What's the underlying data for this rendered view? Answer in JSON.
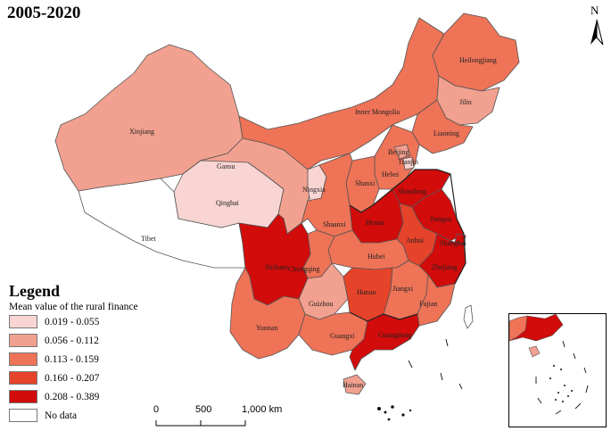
{
  "title": "2005-2020",
  "north_arrow": {
    "letter": "N",
    "icon": "north-arrow-icon"
  },
  "legend": {
    "heading": "Legend",
    "subtitle": "Mean value of the rural finance",
    "classes": [
      {
        "label": "0.019 - 0.055",
        "color": "#f8d5d3"
      },
      {
        "label": "0.056 - 0.112",
        "color": "#f2a08f"
      },
      {
        "label": "0.113 - 0.159",
        "color": "#ee7357"
      },
      {
        "label": "0.160 - 0.207",
        "color": "#e5432a"
      },
      {
        "label": "0.208 - 0.389",
        "color": "#d20b0b"
      },
      {
        "label": "No data",
        "color": "#ffffff"
      }
    ]
  },
  "scale_bar": {
    "labels": [
      "0",
      "500",
      "1,000 km"
    ]
  },
  "provinces": {
    "xinjiang": "Xinjiang",
    "tibet": "Tibet",
    "qinghai": "Qinghai",
    "gansu": "Gansu",
    "inner_mongolia": "Inner Mongolia",
    "heilongjiang": "Heilongjiang",
    "jilin": "Jilin",
    "liaoning": "Liaoning",
    "beijing": "Beijing",
    "tianjin": "Tianjin",
    "hebei": "Hebei",
    "shanxi": "Shanxi",
    "shandong": "Shandong",
    "ningxia": "Ningxia",
    "shaanxi": "Shaanxi",
    "henan": "Henan",
    "anhui": "Anhui",
    "jiangsu": "Jiangsu",
    "shanghai": "Shanghai",
    "zhejiang": "Zhejiang",
    "hubei": "Hubei",
    "sichuan": "Sichuan",
    "chongqing": "Chongqing",
    "hunan": "Hunan",
    "jiangxi": "Jiangxi",
    "fujian": "Fujian",
    "guizhou": "Guizhou",
    "yunnan": "Yunnan",
    "guangxi": "Guangxi",
    "guangdong": "Guangdong",
    "hainan": "Hainan"
  },
  "province_class": {
    "xinjiang": 1,
    "tibet": 5,
    "qinghai": 0,
    "gansu": 1,
    "inner_mongolia": 2,
    "heilongjiang": 2,
    "jilin": 1,
    "liaoning": 2,
    "beijing": 1,
    "tianjin": 0,
    "hebei": 2,
    "shanxi": 2,
    "shandong": 4,
    "ningxia": 0,
    "shaanxi": 2,
    "henan": 4,
    "anhui": 3,
    "jiangsu": 4,
    "shanghai": 4,
    "zhejiang": 4,
    "hubei": 2,
    "sichuan": 4,
    "chongqing": 2,
    "hunan": 3,
    "jiangxi": 2,
    "fujian": 2,
    "guizhou": 1,
    "yunnan": 2,
    "guangxi": 2,
    "guangdong": 4,
    "hainan": 1
  }
}
